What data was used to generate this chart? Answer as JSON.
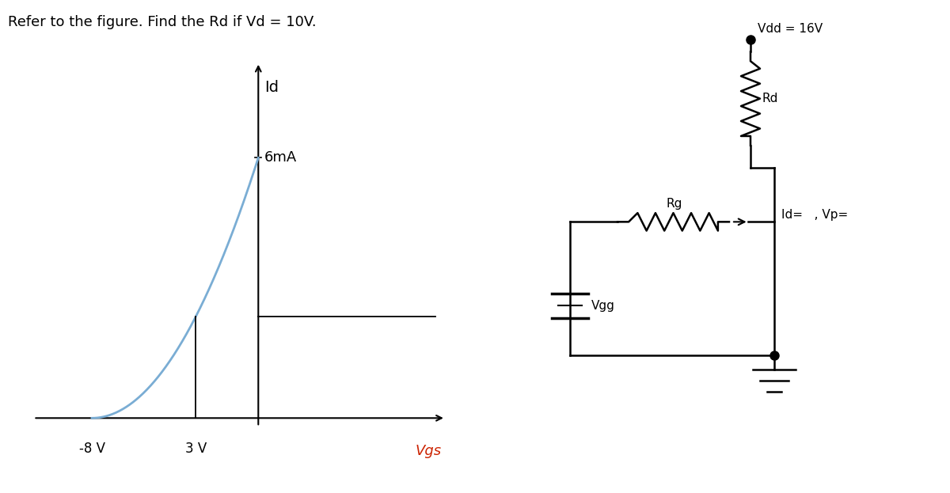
{
  "title": "Refer to the figure. Find the Rd if Vd = 10V.",
  "title_fontsize": 13,
  "bg_color": "#ffffff",
  "graph": {
    "label_id": "Id",
    "label_6ma": "6mA",
    "label_minus8v": "-8 V",
    "label_3v": "3 V",
    "label_vgs": "Vgs",
    "curve_color": "#7aadd4",
    "axis_color": "#000000",
    "idss": 6.0,
    "vp": -8.0,
    "crosshair_vgs": -3.0
  },
  "circuit": {
    "vdd_label": "Vdd = 16V",
    "rd_label": "Rd",
    "rg_label": "Rg",
    "vgg_label": "Vgg",
    "id_vp_label": "Id=   , Vp=",
    "wire_color": "#000000"
  }
}
